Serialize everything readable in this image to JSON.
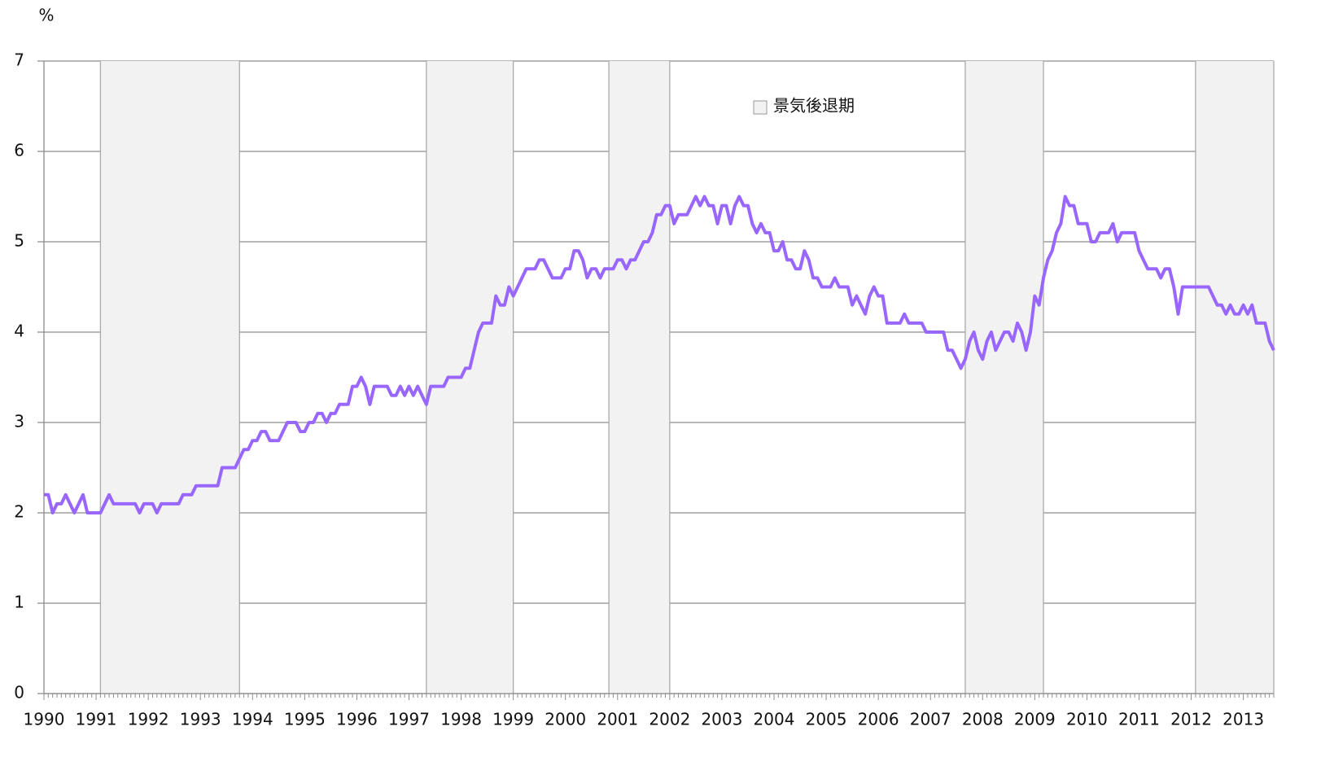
{
  "chart_data": {
    "type": "line",
    "y_unit": "%",
    "recession_legend": "景気後退期",
    "categories": [
      "1990",
      null,
      null,
      null,
      null,
      null,
      null,
      null,
      null,
      null,
      null,
      null,
      "1991",
      null,
      null,
      null,
      null,
      null,
      null,
      null,
      null,
      null,
      null,
      null,
      "1992",
      null,
      null,
      null,
      null,
      null,
      null,
      null,
      null,
      null,
      null,
      null,
      "1993",
      null,
      null,
      null,
      null,
      null,
      null,
      null,
      null,
      null,
      null,
      null,
      "1994",
      null,
      null,
      null,
      null,
      null,
      null,
      null,
      null,
      null,
      null,
      null,
      "1995",
      null,
      null,
      null,
      null,
      null,
      null,
      null,
      null,
      null,
      null,
      null,
      "1996",
      null,
      null,
      null,
      null,
      null,
      null,
      null,
      null,
      null,
      null,
      null,
      "1997",
      null,
      null,
      null,
      null,
      null,
      null,
      null,
      null,
      null,
      null,
      null,
      "1998",
      null,
      null,
      null,
      null,
      null,
      null,
      null,
      null,
      null,
      null,
      null,
      "1999",
      null,
      null,
      null,
      null,
      null,
      null,
      null,
      null,
      null,
      null,
      null,
      "2000",
      null,
      null,
      null,
      null,
      null,
      null,
      null,
      null,
      null,
      null,
      null,
      "2001",
      null,
      null,
      null,
      null,
      null,
      null,
      null,
      null,
      null,
      null,
      null,
      "2002",
      null,
      null,
      null,
      null,
      null,
      null,
      null,
      null,
      null,
      null,
      null,
      "2003",
      null,
      null,
      null,
      null,
      null,
      null,
      null,
      null,
      null,
      null,
      null,
      "2004",
      null,
      null,
      null,
      null,
      null,
      null,
      null,
      null,
      null,
      null,
      null,
      "2005",
      null,
      null,
      null,
      null,
      null,
      null,
      null,
      null,
      null,
      null,
      null,
      "2006",
      null,
      null,
      null,
      null,
      null,
      null,
      null,
      null,
      null,
      null,
      null,
      "2007",
      null,
      null,
      null,
      null,
      null,
      null,
      null,
      null,
      null,
      null,
      null,
      "2008",
      null,
      null,
      null,
      null,
      null,
      null,
      null,
      null,
      null,
      null,
      null,
      "2009",
      null,
      null,
      null,
      null,
      null,
      null,
      null,
      null,
      null,
      null,
      null,
      "2010",
      null,
      null,
      null,
      null,
      null,
      null,
      null,
      null,
      null,
      null,
      null,
      "2011",
      null,
      null,
      null,
      null,
      null,
      null,
      null,
      null,
      null,
      null,
      null,
      "2012",
      null,
      null,
      null,
      null,
      null,
      null,
      null,
      null,
      null,
      null,
      null,
      "2013",
      null,
      null,
      null,
      null,
      null,
      null,
      null
    ],
    "series": [
      {
        "color": "#9966ff",
        "values": [
          2.2,
          2.2,
          2.0,
          2.1,
          2.1,
          2.2,
          2.1,
          2.0,
          2.1,
          2.2,
          2.0,
          2.0,
          2.0,
          2.0,
          2.1,
          2.2,
          2.1,
          2.1,
          2.1,
          2.1,
          2.1,
          2.1,
          2.0,
          2.1,
          2.1,
          2.1,
          2.0,
          2.1,
          2.1,
          2.1,
          2.1,
          2.1,
          2.2,
          2.2,
          2.2,
          2.3,
          2.3,
          2.3,
          2.3,
          2.3,
          2.3,
          2.5,
          2.5,
          2.5,
          2.5,
          2.6,
          2.7,
          2.7,
          2.8,
          2.8,
          2.9,
          2.9,
          2.8,
          2.8,
          2.8,
          2.9,
          3.0,
          3.0,
          3.0,
          2.9,
          2.9,
          3.0,
          3.0,
          3.1,
          3.1,
          3.0,
          3.1,
          3.1,
          3.2,
          3.2,
          3.2,
          3.4,
          3.4,
          3.5,
          3.4,
          3.2,
          3.4,
          3.4,
          3.4,
          3.4,
          3.3,
          3.3,
          3.4,
          3.3,
          3.4,
          3.3,
          3.4,
          3.3,
          3.2,
          3.4,
          3.4,
          3.4,
          3.4,
          3.5,
          3.5,
          3.5,
          3.5,
          3.6,
          3.6,
          3.8,
          4.0,
          4.1,
          4.1,
          4.1,
          4.4,
          4.3,
          4.3,
          4.5,
          4.4,
          4.5,
          4.6,
          4.7,
          4.7,
          4.7,
          4.8,
          4.8,
          4.7,
          4.6,
          4.6,
          4.6,
          4.7,
          4.7,
          4.9,
          4.9,
          4.8,
          4.6,
          4.7,
          4.7,
          4.6,
          4.7,
          4.7,
          4.7,
          4.8,
          4.8,
          4.7,
          4.8,
          4.8,
          4.9,
          5.0,
          5.0,
          5.1,
          5.3,
          5.3,
          5.4,
          5.4,
          5.2,
          5.3,
          5.3,
          5.3,
          5.4,
          5.5,
          5.4,
          5.5,
          5.4,
          5.4,
          5.2,
          5.4,
          5.4,
          5.2,
          5.4,
          5.5,
          5.4,
          5.4,
          5.2,
          5.1,
          5.2,
          5.1,
          5.1,
          4.9,
          4.9,
          5.0,
          4.8,
          4.8,
          4.7,
          4.7,
          4.9,
          4.8,
          4.6,
          4.6,
          4.5,
          4.5,
          4.5,
          4.6,
          4.5,
          4.5,
          4.5,
          4.3,
          4.4,
          4.3,
          4.2,
          4.4,
          4.5,
          4.4,
          4.4,
          4.1,
          4.1,
          4.1,
          4.1,
          4.2,
          4.1,
          4.1,
          4.1,
          4.1,
          4.0,
          4.0,
          4.0,
          4.0,
          4.0,
          3.8,
          3.8,
          3.7,
          3.6,
          3.7,
          3.9,
          4.0,
          3.8,
          3.7,
          3.9,
          4.0,
          3.8,
          3.9,
          4.0,
          4.0,
          3.9,
          4.1,
          4.0,
          3.8,
          4.0,
          4.4,
          4.3,
          4.6,
          4.8,
          4.9,
          5.1,
          5.2,
          5.5,
          5.4,
          5.4,
          5.2,
          5.2,
          5.2,
          5.0,
          5.0,
          5.1,
          5.1,
          5.1,
          5.2,
          5.0,
          5.1,
          5.1,
          5.1,
          5.1,
          4.9,
          4.8,
          4.7,
          4.7,
          4.7,
          4.6,
          4.7,
          4.7,
          4.5,
          4.2,
          4.5,
          4.5,
          4.5,
          4.5,
          4.5,
          4.5,
          4.5,
          4.4,
          4.3,
          4.3,
          4.2,
          4.3,
          4.2,
          4.2,
          4.3,
          4.2,
          4.3,
          4.1,
          4.1,
          4.1,
          3.9,
          3.8
        ]
      }
    ],
    "recessions": [
      {
        "start": 13,
        "end": 45
      },
      {
        "start": 88,
        "end": 108
      },
      {
        "start": 130,
        "end": 144
      },
      {
        "start": 212,
        "end": 230
      },
      {
        "start": 265,
        "end": 283
      }
    ],
    "recession_color": "#f2f2f2",
    "ylim": [
      0,
      7
    ],
    "yticks": [
      0,
      1,
      2,
      3,
      4,
      5,
      6,
      7
    ],
    "grid": true
  }
}
